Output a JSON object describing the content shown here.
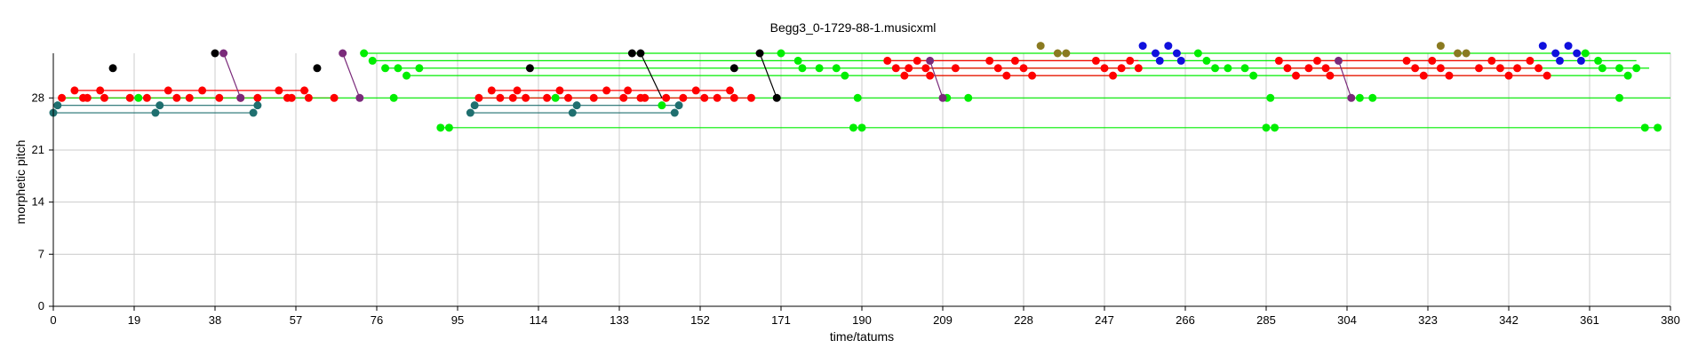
{
  "chart_data": {
    "type": "scatter",
    "title": "Begg3_0-1729-88-1.musicxml",
    "xlabel": "time/tatums",
    "ylabel": "morphetic pitch",
    "xlim": [
      0,
      380
    ],
    "ylim": [
      0,
      34
    ],
    "xticks": [
      "0",
      "19",
      "38",
      "57",
      "76",
      "95",
      "114",
      "133",
      "152",
      "171",
      "190",
      "209",
      "228",
      "247",
      "266",
      "285",
      "304",
      "323",
      "342",
      "361",
      "380"
    ],
    "yticks": [
      "0",
      "7",
      "14",
      "21",
      "28"
    ],
    "grid": true,
    "colors": {
      "red": "#ff0000",
      "green": "#00ee00",
      "teal": "#1f6f6f",
      "purple": "#7a2a7a",
      "blue": "#1010dd",
      "olive": "#8a7a20",
      "black": "#000000",
      "grid": "#cccccc"
    },
    "series": [
      {
        "color": "red",
        "points": [
          [
            2,
            28
          ],
          [
            5,
            29
          ],
          [
            7,
            28
          ],
          [
            8,
            28
          ],
          [
            11,
            29
          ],
          [
            12,
            28
          ],
          [
            18,
            28
          ],
          [
            22,
            28
          ],
          [
            27,
            29
          ],
          [
            29,
            28
          ],
          [
            32,
            28
          ],
          [
            35,
            29
          ],
          [
            39,
            28
          ],
          [
            44,
            28
          ],
          [
            48,
            28
          ],
          [
            53,
            29
          ],
          [
            55,
            28
          ],
          [
            56,
            28
          ],
          [
            59,
            29
          ],
          [
            60,
            28
          ],
          [
            66,
            28
          ],
          [
            100,
            28
          ],
          [
            103,
            29
          ],
          [
            105,
            28
          ],
          [
            108,
            28
          ],
          [
            109,
            29
          ],
          [
            111,
            28
          ],
          [
            116,
            28
          ],
          [
            119,
            29
          ],
          [
            121,
            28
          ],
          [
            127,
            28
          ],
          [
            130,
            29
          ],
          [
            134,
            28
          ],
          [
            135,
            29
          ],
          [
            138,
            28
          ],
          [
            139,
            28
          ],
          [
            144,
            28
          ],
          [
            148,
            28
          ],
          [
            151,
            29
          ],
          [
            153,
            28
          ],
          [
            156,
            28
          ],
          [
            159,
            29
          ],
          [
            160,
            28
          ],
          [
            164,
            28
          ],
          [
            196,
            33
          ],
          [
            198,
            32
          ],
          [
            200,
            31
          ],
          [
            201,
            32
          ],
          [
            203,
            33
          ],
          [
            205,
            32
          ],
          [
            206,
            31
          ],
          [
            212,
            32
          ],
          [
            220,
            33
          ],
          [
            222,
            32
          ],
          [
            224,
            31
          ],
          [
            226,
            33
          ],
          [
            228,
            32
          ],
          [
            230,
            31
          ],
          [
            245,
            33
          ],
          [
            247,
            32
          ],
          [
            249,
            31
          ],
          [
            251,
            32
          ],
          [
            253,
            33
          ],
          [
            255,
            32
          ],
          [
            288,
            33
          ],
          [
            290,
            32
          ],
          [
            292,
            31
          ],
          [
            295,
            32
          ],
          [
            297,
            33
          ],
          [
            299,
            32
          ],
          [
            300,
            31
          ],
          [
            318,
            33
          ],
          [
            320,
            32
          ],
          [
            322,
            31
          ],
          [
            324,
            33
          ],
          [
            326,
            32
          ],
          [
            328,
            31
          ],
          [
            335,
            32
          ],
          [
            338,
            33
          ],
          [
            340,
            32
          ],
          [
            342,
            31
          ],
          [
            344,
            32
          ],
          [
            347,
            33
          ],
          [
            349,
            32
          ],
          [
            351,
            31
          ]
        ]
      },
      {
        "color": "green",
        "points": [
          [
            20,
            28
          ],
          [
            73,
            34
          ],
          [
            75,
            33
          ],
          [
            78,
            32
          ],
          [
            81,
            32
          ],
          [
            83,
            31
          ],
          [
            86,
            32
          ],
          [
            80,
            28
          ],
          [
            91,
            24
          ],
          [
            93,
            24
          ],
          [
            118,
            28
          ],
          [
            143,
            27
          ],
          [
            171,
            34
          ],
          [
            175,
            33
          ],
          [
            176,
            32
          ],
          [
            180,
            32
          ],
          [
            184,
            32
          ],
          [
            186,
            31
          ],
          [
            189,
            28
          ],
          [
            188,
            24
          ],
          [
            190,
            24
          ],
          [
            210,
            28
          ],
          [
            215,
            28
          ],
          [
            269,
            34
          ],
          [
            271,
            33
          ],
          [
            273,
            32
          ],
          [
            276,
            32
          ],
          [
            280,
            32
          ],
          [
            282,
            31
          ],
          [
            286,
            28
          ],
          [
            285,
            24
          ],
          [
            287,
            24
          ],
          [
            307,
            28
          ],
          [
            310,
            28
          ],
          [
            360,
            34
          ],
          [
            363,
            33
          ],
          [
            364,
            32
          ],
          [
            368,
            32
          ],
          [
            372,
            32
          ],
          [
            370,
            31
          ],
          [
            368,
            28
          ],
          [
            374,
            24
          ],
          [
            377,
            24
          ]
        ]
      },
      {
        "color": "teal",
        "points": [
          [
            0,
            26
          ],
          [
            1,
            27
          ],
          [
            24,
            26
          ],
          [
            25,
            27
          ],
          [
            47,
            26
          ],
          [
            48,
            27
          ],
          [
            98,
            26
          ],
          [
            99,
            27
          ],
          [
            122,
            26
          ],
          [
            123,
            27
          ],
          [
            146,
            26
          ],
          [
            147,
            27
          ]
        ]
      },
      {
        "color": "purple",
        "points": [
          [
            40,
            34
          ],
          [
            44,
            28
          ],
          [
            68,
            34
          ],
          [
            72,
            28
          ],
          [
            206,
            33
          ],
          [
            209,
            28
          ],
          [
            302,
            33
          ],
          [
            305,
            28
          ]
        ]
      },
      {
        "color": "blue",
        "points": [
          [
            256,
            35
          ],
          [
            259,
            34
          ],
          [
            260,
            33
          ],
          [
            262,
            35
          ],
          [
            264,
            34
          ],
          [
            265,
            33
          ],
          [
            350,
            35
          ],
          [
            353,
            34
          ],
          [
            354,
            33
          ],
          [
            356,
            35
          ],
          [
            358,
            34
          ],
          [
            359,
            33
          ]
        ]
      },
      {
        "color": "olive",
        "points": [
          [
            232,
            35
          ],
          [
            236,
            34
          ],
          [
            238,
            34
          ],
          [
            326,
            35
          ],
          [
            330,
            34
          ],
          [
            332,
            34
          ]
        ]
      },
      {
        "color": "black",
        "points": [
          [
            14,
            32
          ],
          [
            38,
            34
          ],
          [
            62,
            32
          ],
          [
            112,
            32
          ],
          [
            136,
            34
          ],
          [
            138,
            34
          ],
          [
            160,
            32
          ],
          [
            166,
            34
          ],
          [
            170,
            28
          ]
        ]
      }
    ],
    "segments": [
      {
        "color": "red",
        "x1": 5,
        "x2": 60,
        "y": 29
      },
      {
        "color": "red",
        "x1": 2,
        "x2": 66,
        "y": 28
      },
      {
        "color": "teal",
        "x1": 1,
        "x2": 48,
        "y": 27
      },
      {
        "color": "teal",
        "x1": 0,
        "x2": 47,
        "y": 26
      },
      {
        "color": "green",
        "x1": 2,
        "x2": 380,
        "y": 28
      },
      {
        "color": "green",
        "x1": 73,
        "x2": 380,
        "y": 34
      },
      {
        "color": "green",
        "x1": 75,
        "x2": 372,
        "y": 33
      },
      {
        "color": "green",
        "x1": 78,
        "x2": 375,
        "y": 32
      },
      {
        "color": "green",
        "x1": 83,
        "x2": 370,
        "y": 31
      },
      {
        "color": "green",
        "x1": 91,
        "x2": 377,
        "y": 24
      },
      {
        "color": "red",
        "x1": 103,
        "x2": 159,
        "y": 29
      },
      {
        "color": "red",
        "x1": 100,
        "x2": 164,
        "y": 28
      },
      {
        "color": "teal",
        "x1": 99,
        "x2": 147,
        "y": 27
      },
      {
        "color": "teal",
        "x1": 98,
        "x2": 146,
        "y": 26
      },
      {
        "color": "red",
        "x1": 196,
        "x2": 255,
        "y": 33
      },
      {
        "color": "red",
        "x1": 198,
        "x2": 253,
        "y": 32
      },
      {
        "color": "red",
        "x1": 200,
        "x2": 249,
        "y": 31
      },
      {
        "color": "red",
        "x1": 288,
        "x2": 347,
        "y": 33
      },
      {
        "color": "red",
        "x1": 290,
        "x2": 349,
        "y": 32
      },
      {
        "color": "red",
        "x1": 292,
        "x2": 351,
        "y": 31
      },
      {
        "color": "purple",
        "x1": 40,
        "y1": 34,
        "x2": 44,
        "y2": 28
      },
      {
        "color": "purple",
        "x1": 68,
        "y1": 34,
        "x2": 72,
        "y2": 28
      },
      {
        "color": "purple",
        "x1": 206,
        "y1": 33,
        "x2": 209,
        "y2": 28
      },
      {
        "color": "purple",
        "x1": 302,
        "y1": 33,
        "x2": 305,
        "y2": 28
      },
      {
        "color": "black",
        "x1": 138,
        "y1": 34,
        "x2": 143,
        "y2": 28
      },
      {
        "color": "black",
        "x1": 166,
        "y1": 34,
        "x2": 170,
        "y2": 28
      }
    ]
  }
}
